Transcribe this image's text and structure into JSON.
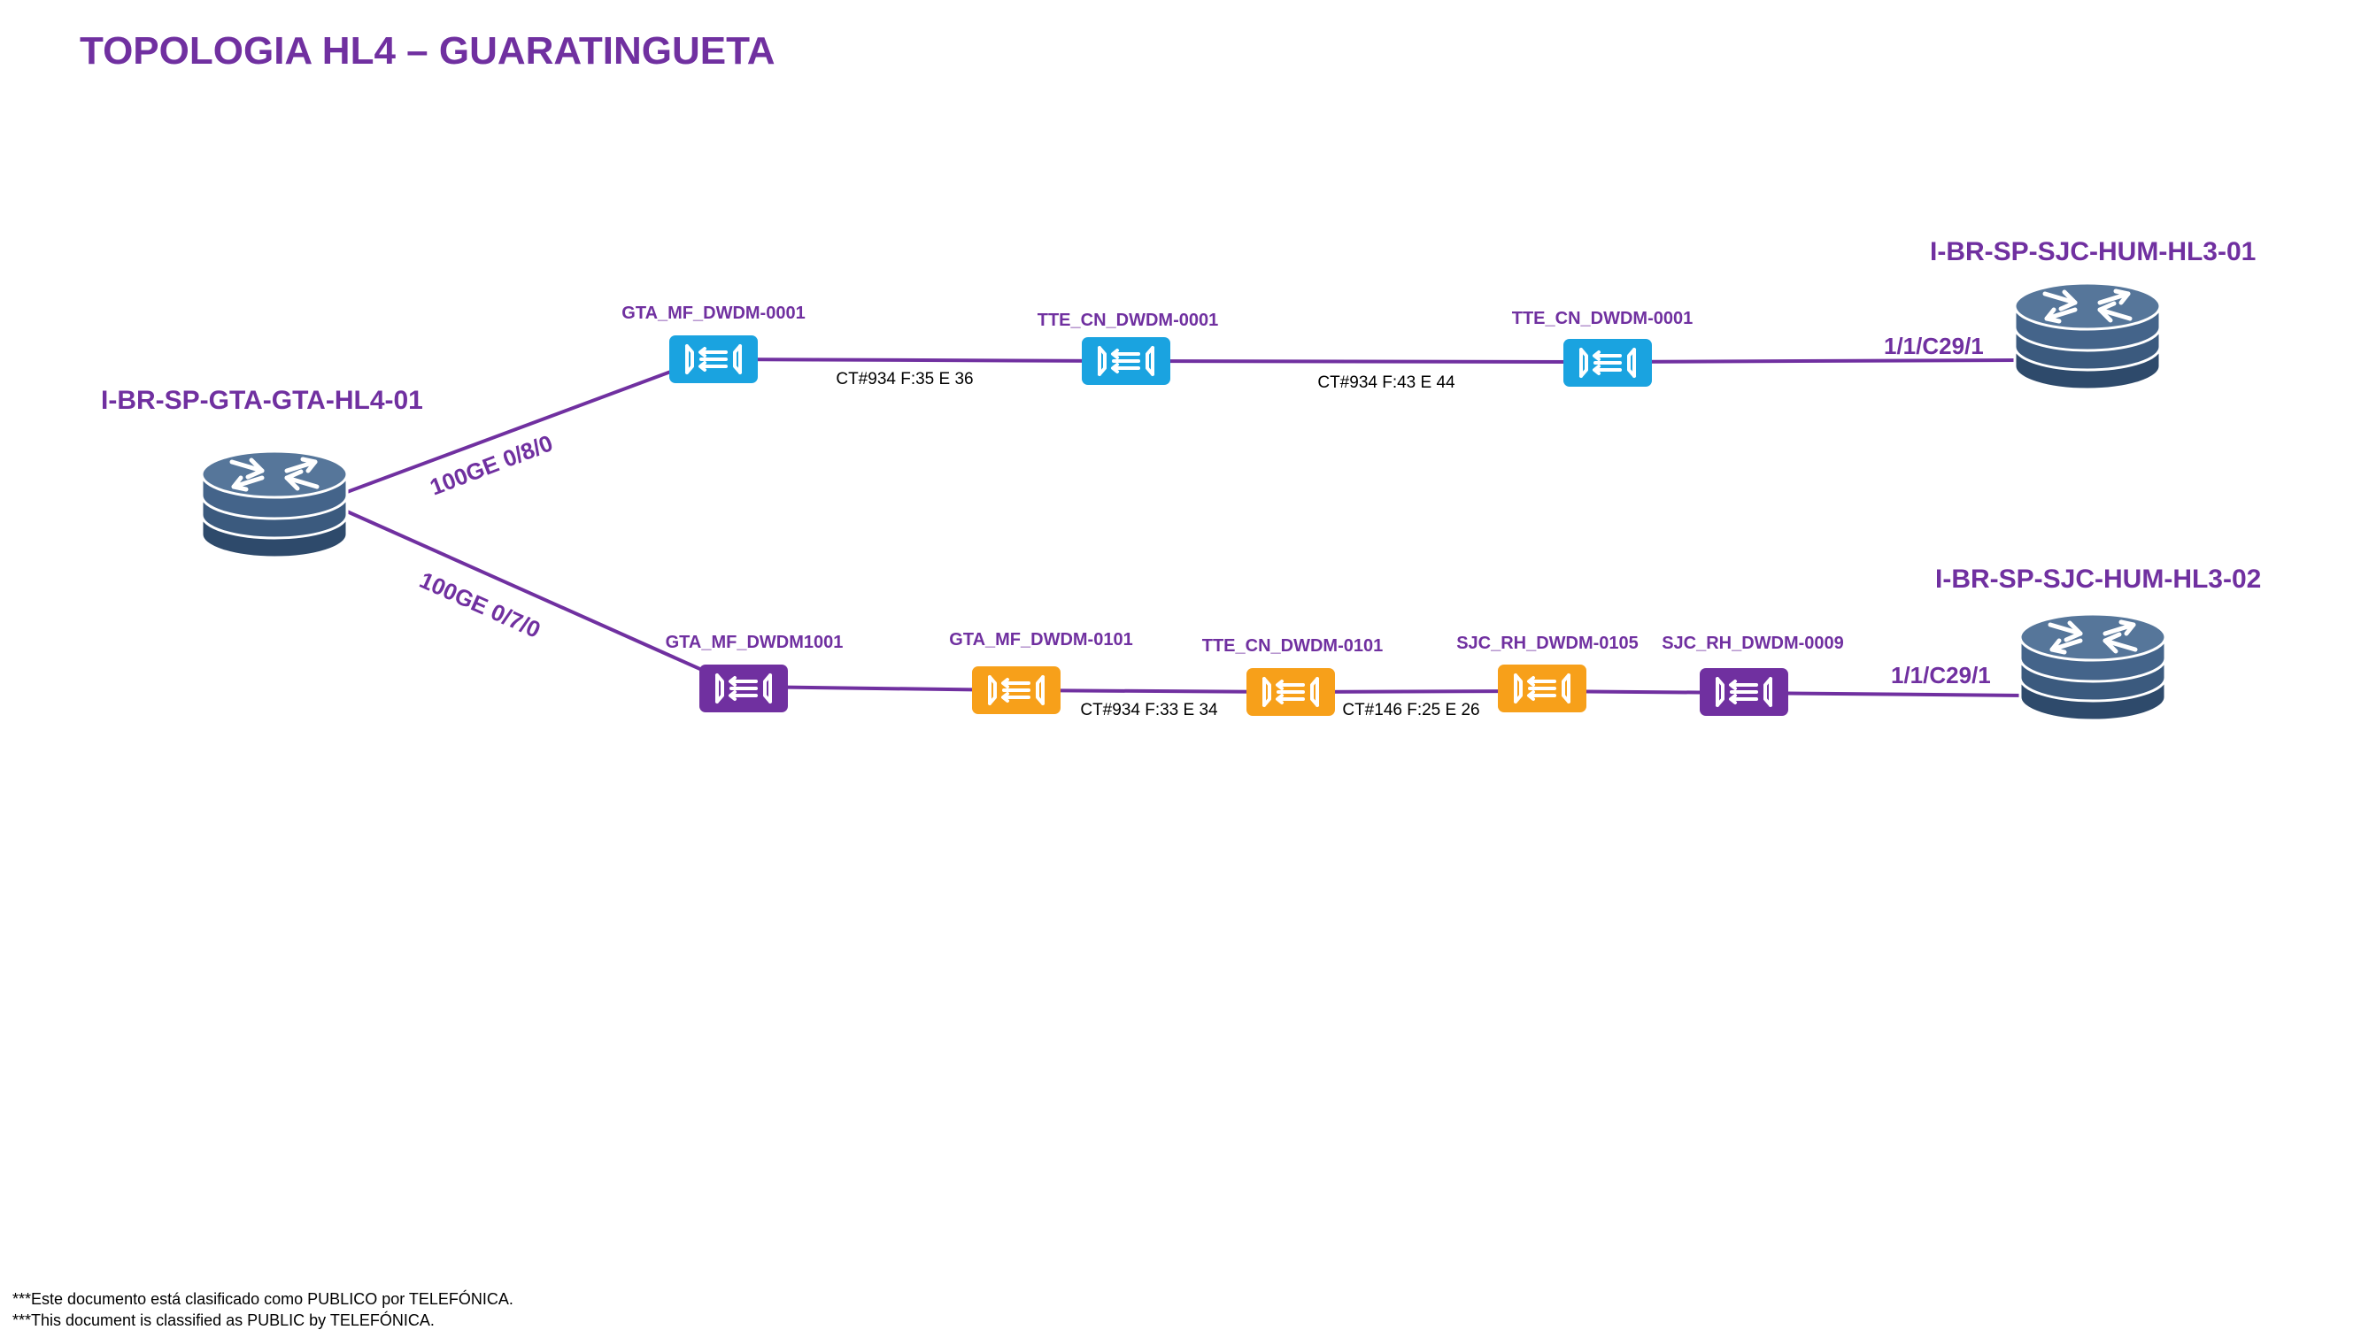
{
  "title": "TOPOLOGIA HL4 – GUARATINGUETA",
  "colors": {
    "title": "#7030a0",
    "link": "#7030a0",
    "router_top": "#4f6a89",
    "router_dark": "#2e4a6b",
    "dwdm_blue": "#1aa3e0",
    "dwdm_orange": "#f7a01a",
    "dwdm_purple": "#7030a0"
  },
  "routers": {
    "gta": {
      "label": "I-BR-SP-GTA-GTA-HL4-01",
      "icon": "router-icon"
    },
    "sjc1": {
      "label": "I-BR-SP-SJC-HUM-HL3-01",
      "icon": "router-icon"
    },
    "sjc2": {
      "label": "I-BR-SP-SJC-HUM-HL3-02",
      "icon": "router-icon"
    }
  },
  "top_path": {
    "nodes": [
      {
        "label": "GTA_MF_DWDM-0001",
        "color": "blue",
        "icon": "dwdm-icon"
      },
      {
        "label": "TTE_CN_DWDM-0001",
        "color": "blue",
        "icon": "dwdm-icon"
      },
      {
        "label": "TTE_CN_DWDM-0001",
        "color": "blue",
        "icon": "dwdm-icon"
      }
    ],
    "links": [
      "CT#934 F:35 E 36",
      "CT#934 F:43 E 44"
    ],
    "port_from": "100GE 0/8/0",
    "port_to": "1/1/C29/1"
  },
  "bottom_path": {
    "nodes": [
      {
        "label": "GTA_MF_DWDM1001",
        "color": "purple",
        "icon": "dwdm-icon"
      },
      {
        "label": "GTA_MF_DWDM-0101",
        "color": "orange",
        "icon": "dwdm-icon"
      },
      {
        "label": "TTE_CN_DWDM-0101",
        "color": "orange",
        "icon": "dwdm-icon"
      },
      {
        "label": "SJC_RH_DWDM-0105",
        "color": "orange",
        "icon": "dwdm-icon"
      },
      {
        "label": "SJC_RH_DWDM-0009",
        "color": "purple",
        "icon": "dwdm-icon"
      }
    ],
    "links": [
      "CT#934 F:33 E 34",
      "CT#146 F:25 E 26"
    ],
    "port_from": "100GE 0/7/0",
    "port_to": "1/1/C29/1"
  },
  "footer": {
    "line1": "***Este documento está clasificado como PUBLICO por TELEFÓNICA.",
    "line2": "***This document is classified as PUBLIC by TELEFÓNICA."
  }
}
